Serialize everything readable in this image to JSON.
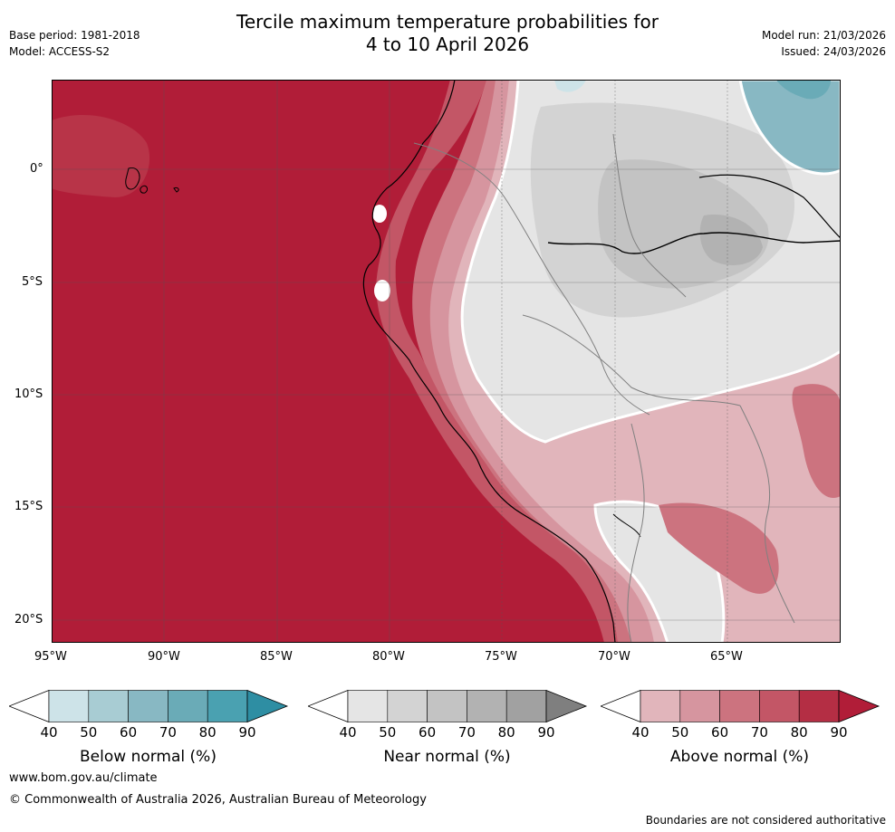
{
  "title_line1": "Tercile maximum temperature probabilities for",
  "title_line2": "4 to 10 April 2026",
  "meta_left": {
    "base_period": "Base period: 1981-2018",
    "model": "Model: ACCESS-S2"
  },
  "meta_right": {
    "model_run": "Model run: 21/03/2026",
    "issued": "Issued: 24/03/2026"
  },
  "map": {
    "lat_labels": [
      "0°",
      "5°S",
      "10°S",
      "15°S",
      "20°S"
    ],
    "lon_labels": [
      "95°W",
      "90°W",
      "85°W",
      "80°W",
      "75°W",
      "70°W",
      "65°W"
    ]
  },
  "colorbars": [
    {
      "label": "Below normal (%)",
      "ticks": [
        "40",
        "50",
        "60",
        "70",
        "80",
        "90"
      ],
      "colors": [
        "#ffffff",
        "#cde3e8",
        "#a8ccd3",
        "#88b8c3",
        "#6aabb7",
        "#4aa1b1",
        "#2e8ea3"
      ]
    },
    {
      "label": "Near normal (%)",
      "ticks": [
        "40",
        "50",
        "60",
        "70",
        "80",
        "90"
      ],
      "colors": [
        "#ffffff",
        "#e5e5e5",
        "#d3d3d3",
        "#c3c3c3",
        "#b2b2b2",
        "#a1a1a1",
        "#7f7f7f"
      ]
    },
    {
      "label": "Above normal (%)",
      "ticks": [
        "40",
        "50",
        "60",
        "70",
        "80",
        "90"
      ],
      "colors": [
        "#ffffff",
        "#e1b5bb",
        "#d6959f",
        "#cc737f",
        "#c35666",
        "#b42e44",
        "#b11d38"
      ]
    }
  ],
  "footer": {
    "url": "www.bom.gov.au/climate",
    "copyright": "© Commonwealth of Australia 2026, Australian Bureau of Meteorology",
    "disclaimer": "Boundaries are not considered authoritative"
  }
}
